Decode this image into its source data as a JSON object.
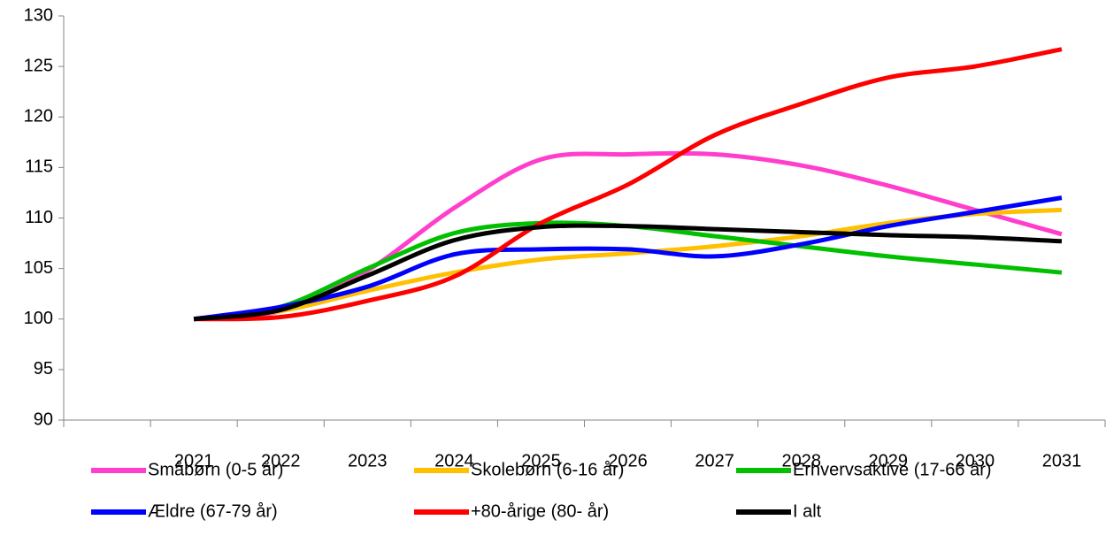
{
  "chart_data": {
    "type": "line",
    "categories": [
      null,
      "2021",
      "2022",
      "2023",
      "2024",
      "2025",
      "2026",
      "2027",
      "2028",
      "2029",
      "2030",
      "2031"
    ],
    "ylim": [
      90,
      130
    ],
    "yticks": [
      90,
      95,
      100,
      105,
      110,
      115,
      120,
      125,
      130
    ],
    "legend": "bottom",
    "series": [
      {
        "name": "Småbørn (0-5 år)",
        "color": "#ff3fcc",
        "values": [
          null,
          100,
          100.8,
          104.8,
          111,
          115.8,
          116.3,
          116.3,
          115.2,
          113.2,
          110.8,
          108.4
        ]
      },
      {
        "name": "Skolebørn (6-16 år)",
        "color": "#ffc000",
        "values": [
          null,
          100,
          100.8,
          102.8,
          104.6,
          105.9,
          106.5,
          107.2,
          108.2,
          109.5,
          110.4,
          110.8
        ]
      },
      {
        "name": "Erhvervsaktive (17-66 år)",
        "color": "#00c000",
        "values": [
          null,
          100,
          101.2,
          105,
          108.5,
          109.5,
          109.2,
          108.2,
          107.2,
          106.2,
          105.4,
          104.6
        ]
      },
      {
        "name": "Ældre (67-79 år)",
        "color": "#0000ff",
        "values": [
          null,
          100,
          101.2,
          103.2,
          106.4,
          106.9,
          106.9,
          106.2,
          107.4,
          109.2,
          110.6,
          112
        ]
      },
      {
        "name": "+80-årige (80- år)",
        "color": "#ff0000",
        "values": [
          null,
          100,
          100.2,
          101.8,
          104.2,
          109.5,
          113.3,
          118.2,
          121.3,
          123.9,
          125,
          126.7
        ]
      },
      {
        "name": "I alt",
        "color": "#000000",
        "values": [
          null,
          100,
          100.9,
          104.3,
          107.8,
          109.1,
          109.2,
          108.9,
          108.6,
          108.3,
          108.1,
          107.7
        ]
      }
    ]
  }
}
